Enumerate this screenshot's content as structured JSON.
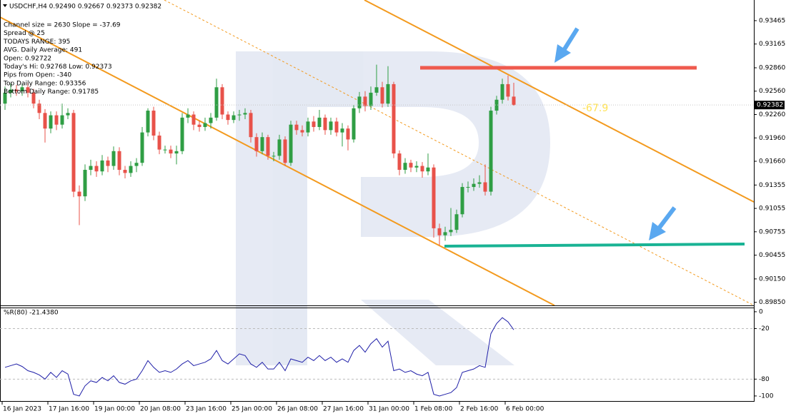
{
  "chart_data": [
    {
      "type": "candlestick",
      "title": "USDCHF,H4  0.92490 0.92667 0.92373 0.92382",
      "annotations": [
        "Channel size = 2630 Slope = -37.69",
        "Spread @ 25",
        "TODAYS RANGE: 395",
        "AVG. Daily Average: 491",
        "Open: 0.92722",
        "Today's Hi: 0.92768  Low: 0.92373",
        "Pips from Open: -340",
        "Top Daily Range: 0.93356",
        "Bottom Daily Range: 0.91785"
      ],
      "channel_label": "-67.9",
      "categories": [
        "16 Jan 2023",
        null,
        null,
        null,
        null,
        null,
        null,
        null,
        "17 Jan 16:00",
        null,
        null,
        null,
        null,
        null,
        null,
        null,
        "19 Jan 00:00",
        null,
        null,
        null,
        null,
        null,
        null,
        null,
        "20 Jan 08:00",
        null,
        null,
        null,
        null,
        null,
        null,
        null,
        "23 Jan 16:00",
        null,
        null,
        null,
        null,
        null,
        null,
        null,
        "25 Jan 00:00",
        null,
        null,
        null,
        null,
        null,
        null,
        null,
        "26 Jan 08:00",
        null,
        null,
        null,
        null,
        null,
        null,
        null,
        "27 Jan 16:00",
        null,
        null,
        null,
        null,
        null,
        null,
        null,
        "31 Jan 00:00",
        null,
        null,
        null,
        null,
        null,
        null,
        null,
        "1 Feb 08:00",
        null,
        null,
        null,
        null,
        null,
        null,
        null,
        "2 Feb 16:00",
        null,
        null,
        null,
        null,
        null,
        null,
        null,
        "6 Feb 00:00",
        null
      ],
      "open": [
        0.924,
        0.9254,
        0.9258,
        0.9256,
        0.9261,
        0.9254,
        0.924,
        0.9228,
        0.9208,
        0.9225,
        0.9213,
        0.9225,
        0.9228,
        0.9127,
        0.9121,
        0.9155,
        0.916,
        0.9153,
        0.9167,
        0.916,
        0.9179,
        0.9155,
        0.9151,
        0.916,
        0.9164,
        0.9203,
        0.9231,
        0.9199,
        0.9181,
        0.9181,
        0.9176,
        0.9179,
        0.9222,
        0.9226,
        0.9213,
        0.921,
        0.9215,
        0.9222,
        0.9261,
        0.9226,
        0.9219,
        0.9225,
        0.9226,
        0.9228,
        0.9197,
        0.9179,
        0.9197,
        0.9173,
        0.9173,
        0.9194,
        0.9164,
        0.9213,
        0.9206,
        0.9203,
        0.9217,
        0.921,
        0.9222,
        0.9206,
        0.9217,
        0.9203,
        0.9208,
        0.9194,
        0.9234,
        0.9249,
        0.9237,
        0.9254,
        0.9261,
        0.924,
        0.9265,
        0.9176,
        0.9155,
        0.9164,
        0.9158,
        0.916,
        0.9153,
        0.9158,
        0.908,
        0.9071,
        0.9075,
        0.9078,
        0.9098,
        0.9133,
        0.9133,
        0.9137,
        0.9139,
        0.9127,
        0.9231,
        0.9245,
        0.9265,
        0.9249
      ],
      "high": [
        0.9262,
        0.9266,
        0.9264,
        0.9266,
        0.9267,
        0.9259,
        0.9245,
        0.9233,
        0.923,
        0.923,
        0.924,
        0.9234,
        0.9232,
        0.9135,
        0.9162,
        0.9168,
        0.9166,
        0.9174,
        0.9172,
        0.9185,
        0.9184,
        0.916,
        0.9166,
        0.917,
        0.921,
        0.9234,
        0.9236,
        0.9204,
        0.9186,
        0.9186,
        0.9186,
        0.9228,
        0.9234,
        0.923,
        0.9218,
        0.9222,
        0.9228,
        0.9272,
        0.9265,
        0.923,
        0.923,
        0.9232,
        0.9234,
        0.9232,
        0.9202,
        0.9203,
        0.92,
        0.9178,
        0.92,
        0.9198,
        0.9218,
        0.9218,
        0.9212,
        0.9222,
        0.9224,
        0.9232,
        0.9226,
        0.9222,
        0.9222,
        0.9215,
        0.9212,
        0.9238,
        0.9255,
        0.9256,
        0.9262,
        0.929,
        0.9268,
        0.9288,
        0.9268,
        0.918,
        0.917,
        0.9168,
        0.9166,
        0.9165,
        0.9176,
        0.9162,
        0.9086,
        0.9082,
        0.9106,
        0.9104,
        0.9138,
        0.914,
        0.9144,
        0.9148,
        0.9162,
        0.9236,
        0.925,
        0.9272,
        0.9276,
        0.92667
      ],
      "low": [
        0.9232,
        0.9248,
        0.925,
        0.925,
        0.9248,
        0.9234,
        0.922,
        0.919,
        0.9202,
        0.9206,
        0.9208,
        0.922,
        0.912,
        0.9084,
        0.9115,
        0.9148,
        0.9146,
        0.9148,
        0.9152,
        0.9155,
        0.9148,
        0.9144,
        0.9146,
        0.9152,
        0.916,
        0.9198,
        0.9193,
        0.9175,
        0.9176,
        0.917,
        0.9162,
        0.9175,
        0.9215,
        0.9206,
        0.9204,
        0.9205,
        0.9208,
        0.9218,
        0.922,
        0.9213,
        0.9215,
        0.9218,
        0.922,
        0.919,
        0.9172,
        0.9175,
        0.9168,
        0.9166,
        0.9168,
        0.916,
        0.916,
        0.92,
        0.9198,
        0.9198,
        0.9204,
        0.9206,
        0.92,
        0.92,
        0.9198,
        0.9185,
        0.918,
        0.919,
        0.9228,
        0.923,
        0.9232,
        0.925,
        0.9235,
        0.9236,
        0.917,
        0.9148,
        0.915,
        0.9152,
        0.9152,
        0.9145,
        0.9148,
        0.9068,
        0.9058,
        0.9064,
        0.907,
        0.9074,
        0.9094,
        0.9126,
        0.9128,
        0.9132,
        0.9122,
        0.9122,
        0.9226,
        0.924,
        0.9244,
        0.92373
      ],
      "close": [
        0.9254,
        0.9258,
        0.9256,
        0.9261,
        0.9254,
        0.924,
        0.9228,
        0.9208,
        0.9225,
        0.9213,
        0.9225,
        0.9228,
        0.9127,
        0.9121,
        0.9155,
        0.916,
        0.9153,
        0.9167,
        0.916,
        0.9179,
        0.9155,
        0.9151,
        0.916,
        0.9164,
        0.9203,
        0.9231,
        0.9199,
        0.9181,
        0.9181,
        0.9176,
        0.9179,
        0.9222,
        0.9226,
        0.9213,
        0.921,
        0.9215,
        0.9222,
        0.9261,
        0.9226,
        0.9219,
        0.9225,
        0.9226,
        0.9228,
        0.9197,
        0.9179,
        0.9197,
        0.9173,
        0.9173,
        0.9194,
        0.9164,
        0.9213,
        0.9206,
        0.9203,
        0.9217,
        0.921,
        0.9222,
        0.9206,
        0.9217,
        0.9203,
        0.9208,
        0.9194,
        0.9234,
        0.9249,
        0.9237,
        0.9254,
        0.9261,
        0.924,
        0.9265,
        0.9176,
        0.9155,
        0.9164,
        0.9158,
        0.916,
        0.9153,
        0.9158,
        0.908,
        0.9071,
        0.9075,
        0.9078,
        0.9098,
        0.9133,
        0.9133,
        0.9137,
        0.9139,
        0.9127,
        0.9231,
        0.9245,
        0.9265,
        0.9249,
        0.92382
      ],
      "up_color": "#2f9e44",
      "down_color": "#e8524a",
      "ylim": [
        0.8981,
        0.9373
      ],
      "yticks": [
        0.93465,
        0.93165,
        {
          "value": 0.9286,
          "label": "0.92860"
        },
        {
          "value": 0.9256,
          "label": "0.92560"
        },
        {
          "value": 0.9226,
          "label": "0.92260"
        },
        {
          "value": 0.9196,
          "label": "0.91960"
        },
        {
          "value": 0.9166,
          "label": "0.91660"
        },
        0.91355,
        0.91055,
        0.90755,
        0.90455,
        {
          "value": 0.9015,
          "label": "0.90150"
        },
        {
          "value": 0.8985,
          "label": "0.89850"
        }
      ]
    },
    {
      "type": "line",
      "title": "%R(80) -21.4380",
      "color": "#1f1fa8",
      "values": [
        -66,
        -64,
        -62,
        -65,
        -70,
        -72,
        -75,
        -80,
        -72,
        -78,
        -70,
        -74,
        -98,
        -100,
        -88,
        -82,
        -84,
        -78,
        -82,
        -76,
        -84,
        -86,
        -82,
        -80,
        -70,
        -58,
        -66,
        -72,
        -70,
        -72,
        -68,
        -62,
        -58,
        -64,
        -62,
        -60,
        -56,
        -46,
        -58,
        -62,
        -56,
        -50,
        -52,
        -62,
        -66,
        -60,
        -68,
        -68,
        -60,
        -70,
        -56,
        -58,
        -60,
        -54,
        -58,
        -52,
        -58,
        -54,
        -60,
        -56,
        -60,
        -46,
        -40,
        -48,
        -38,
        -32,
        -42,
        -35,
        -70,
        -68,
        -72,
        -70,
        -74,
        -76,
        -72,
        -98,
        -100,
        -98,
        -96,
        -90,
        -72,
        -70,
        -68,
        -64,
        -66,
        -26,
        -14,
        -7,
        -12,
        -21.438
      ],
      "ylim": [
        -106,
        5
      ],
      "yticks": [
        0,
        -20,
        -80,
        -100
      ],
      "levels": [
        -20,
        -80
      ]
    }
  ]
}
